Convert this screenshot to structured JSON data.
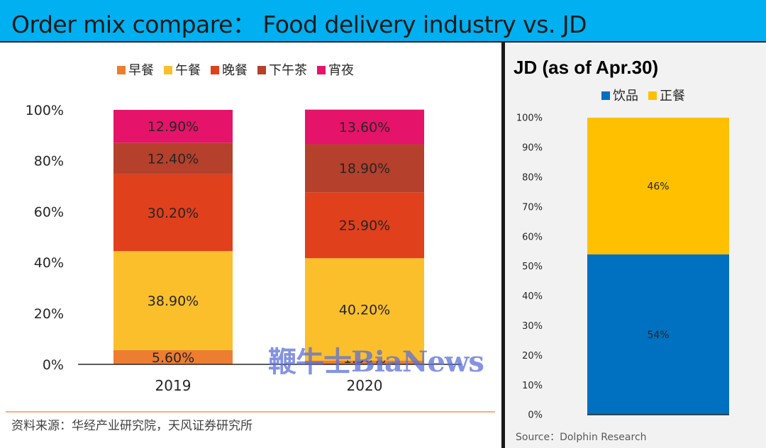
{
  "header": {
    "title": "Order mix compare：  Food delivery industry vs. JD"
  },
  "left": {
    "source": "资料来源：华经产业研究院，天风证券研究所"
  },
  "right": {
    "source": "Source：Dolphin Research"
  },
  "watermark": "鞭牛士BiaNews",
  "chart_data": [
    {
      "type": "bar",
      "stacked": true,
      "categories": [
        "2019",
        "2020"
      ],
      "series": [
        {
          "name": "早餐",
          "values": [
            5.6,
            1.5
          ],
          "labels": [
            "5.60%",
            "1.50%"
          ],
          "color": "#ed7d31"
        },
        {
          "name": "午餐",
          "values": [
            38.9,
            40.2
          ],
          "labels": [
            "38.90%",
            "40.20%"
          ],
          "color": "#fbbf2c"
        },
        {
          "name": "晚餐",
          "values": [
            30.2,
            25.9
          ],
          "labels": [
            "30.20%",
            "25.90%"
          ],
          "color": "#e0401c"
        },
        {
          "name": "下午茶",
          "values": [
            12.4,
            18.9
          ],
          "labels": [
            "12.40%",
            "18.90%"
          ],
          "color": "#b5402c"
        },
        {
          "name": "宵夜",
          "values": [
            12.9,
            13.6
          ],
          "labels": [
            "12.90%",
            "13.60%"
          ],
          "color": "#e5136a"
        }
      ],
      "yticks": [
        "0%",
        "20%",
        "40%",
        "60%",
        "80%",
        "100%"
      ],
      "ylim": [
        0,
        100
      ],
      "legend_position": "top",
      "grid": false
    },
    {
      "type": "bar",
      "stacked": true,
      "title": "JD (as of Apr.30)",
      "categories": [
        ""
      ],
      "series": [
        {
          "name": "饮品",
          "values": [
            54
          ],
          "labels": [
            "54%"
          ],
          "color": "#0070c0"
        },
        {
          "name": "正餐",
          "values": [
            46
          ],
          "labels": [
            "46%"
          ],
          "color": "#ffc000"
        }
      ],
      "yticks": [
        "0%",
        "10%",
        "20%",
        "30%",
        "40%",
        "50%",
        "60%",
        "70%",
        "80%",
        "90%",
        "100%"
      ],
      "ylim": [
        0,
        100
      ],
      "legend_position": "top",
      "grid": false
    }
  ]
}
